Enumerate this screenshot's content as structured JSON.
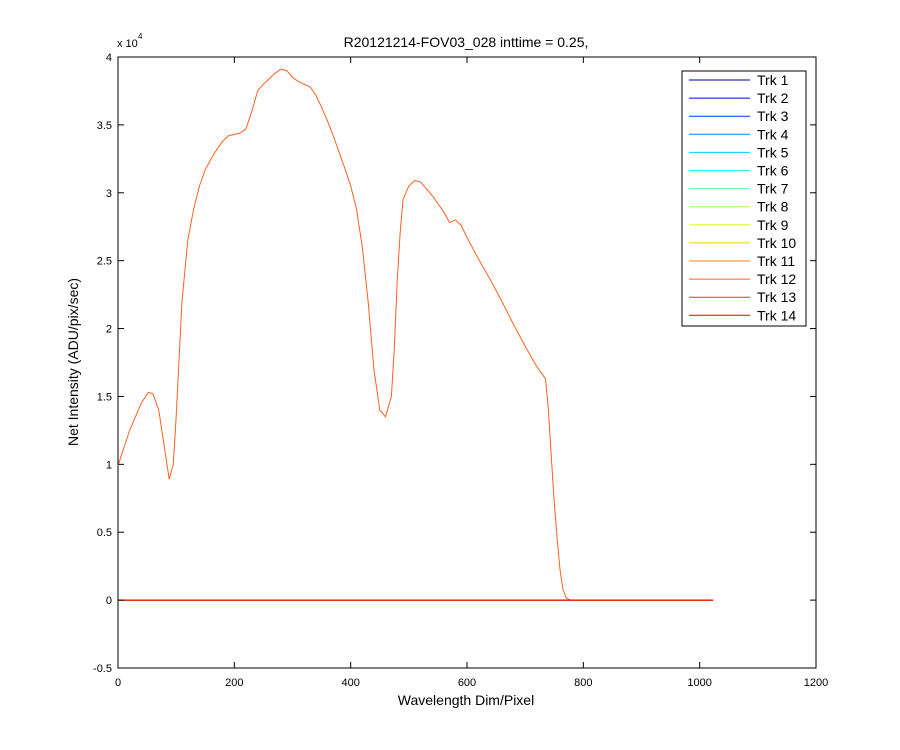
{
  "chart_data": {
    "type": "line",
    "title": "R20121214-FOV03_028 inttime = 0.25,",
    "xlabel": "Wavelength Dim/Pixel",
    "ylabel": "Net Intensity (ADU/pix/sec)",
    "y_multiplier_label": "x 10",
    "y_multiplier_exponent": "4",
    "xlim": [
      0,
      1200
    ],
    "ylim": [
      -0.5,
      4
    ],
    "y_scale_factor": 10000,
    "x_ticks": [
      0,
      200,
      400,
      600,
      800,
      1000,
      1200
    ],
    "x_tick_labels": [
      "0",
      "200",
      "400",
      "600",
      "800",
      "1000",
      "1200"
    ],
    "y_ticks": [
      -0.5,
      0,
      0.5,
      1,
      1.5,
      2,
      2.5,
      3,
      3.5,
      4
    ],
    "y_tick_labels": [
      "-0.5",
      "0",
      "0.5",
      "1",
      "1.5",
      "2",
      "2.5",
      "3",
      "3.5",
      "4"
    ],
    "grid": false,
    "legend_position": "top-right",
    "series": [
      {
        "name": "Trk 1",
        "color": "#00008f",
        "x": [
          0,
          1023
        ],
        "y": [
          0,
          0
        ]
      },
      {
        "name": "Trk 2",
        "color": "#0000df",
        "x": [
          0,
          1023
        ],
        "y": [
          0,
          0
        ]
      },
      {
        "name": "Trk 3",
        "color": "#0030ff",
        "x": [
          0,
          1023
        ],
        "y": [
          0,
          0
        ]
      },
      {
        "name": "Trk 4",
        "color": "#0080ff",
        "x": [
          0,
          1023
        ],
        "y": [
          0,
          0
        ]
      },
      {
        "name": "Trk 5",
        "color": "#00cfff",
        "x": [
          0,
          1023
        ],
        "y": [
          0,
          0
        ]
      },
      {
        "name": "Trk 6",
        "color": "#20ffdf",
        "x": [
          0,
          1023
        ],
        "y": [
          0,
          0
        ]
      },
      {
        "name": "Trk 7",
        "color": "#60ff9f",
        "x": [
          0,
          1023
        ],
        "y": [
          0,
          0
        ]
      },
      {
        "name": "Trk 8",
        "color": "#9fff60",
        "x": [
          0,
          1023
        ],
        "y": [
          0,
          0
        ]
      },
      {
        "name": "Trk 9",
        "color": "#dfff20",
        "x": [
          0,
          1023
        ],
        "y": [
          0,
          0
        ]
      },
      {
        "name": "Trk 10",
        "color": "#ffcf00",
        "x": [
          0,
          1023
        ],
        "y": [
          0,
          0
        ]
      },
      {
        "name": "Trk 11",
        "color": "#ff8000",
        "x": [
          0,
          1023
        ],
        "y": [
          0,
          0
        ]
      },
      {
        "name": "Trk 12",
        "color": "#ff6020",
        "x": [
          0,
          20,
          40,
          52,
          60,
          70,
          80,
          88,
          95,
          100,
          110,
          120,
          130,
          140,
          150,
          160,
          170,
          180,
          190,
          200,
          210,
          220,
          230,
          240,
          250,
          260,
          270,
          280,
          290,
          300,
          310,
          320,
          330,
          340,
          350,
          360,
          370,
          380,
          390,
          400,
          410,
          420,
          430,
          440,
          450,
          460,
          470,
          475,
          480,
          485,
          490,
          500,
          510,
          520,
          530,
          540,
          550,
          560,
          570,
          580,
          590,
          600,
          620,
          640,
          660,
          680,
          700,
          720,
          735,
          740,
          745,
          750,
          755,
          760,
          765,
          770,
          775,
          780,
          790,
          800,
          850,
          900,
          950,
          1000,
          1023
        ],
        "y": [
          0.99,
          1.25,
          1.45,
          1.53,
          1.52,
          1.4,
          1.12,
          0.89,
          1.0,
          1.35,
          2.2,
          2.65,
          2.88,
          3.05,
          3.17,
          3.25,
          3.32,
          3.38,
          3.42,
          3.43,
          3.44,
          3.47,
          3.6,
          3.75,
          3.8,
          3.84,
          3.88,
          3.91,
          3.9,
          3.85,
          3.82,
          3.8,
          3.78,
          3.72,
          3.63,
          3.53,
          3.42,
          3.3,
          3.18,
          3.05,
          2.88,
          2.6,
          2.2,
          1.7,
          1.4,
          1.35,
          1.5,
          1.85,
          2.35,
          2.7,
          2.95,
          3.05,
          3.09,
          3.08,
          3.03,
          2.98,
          2.92,
          2.86,
          2.78,
          2.8,
          2.76,
          2.67,
          2.51,
          2.36,
          2.2,
          2.03,
          1.87,
          1.72,
          1.63,
          1.4,
          1.05,
          0.72,
          0.45,
          0.22,
          0.08,
          0.02,
          0.005,
          0,
          0,
          0,
          0,
          0,
          0,
          0,
          0
        ]
      },
      {
        "name": "Trk 13",
        "color": "#ff3000",
        "x": [
          0,
          1023
        ],
        "y": [
          0,
          0
        ]
      },
      {
        "name": "Trk 14",
        "color": "#df0000",
        "x": [
          0,
          1023
        ],
        "y": [
          0,
          0
        ]
      }
    ]
  }
}
